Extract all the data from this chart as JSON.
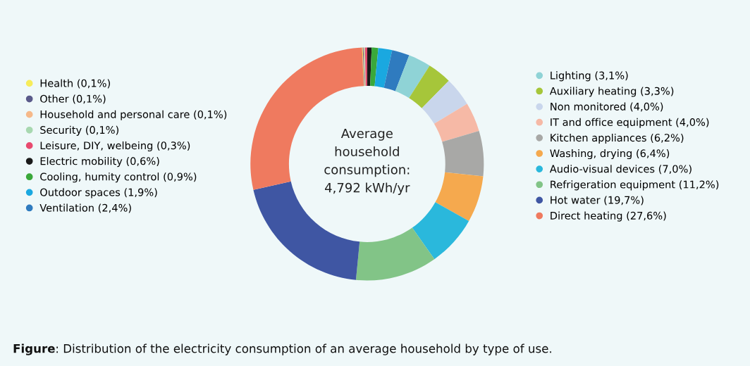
{
  "chart_data": {
    "type": "donut",
    "categories": [
      "Health",
      "Other",
      "Household and personal care",
      "Security",
      "Leisure, DIY, welbeing",
      "Electric mobility",
      "Cooling, humity control",
      "Outdoor spaces",
      "Ventilation",
      "Lighting",
      "Auxiliary heating",
      "Non monitored",
      "IT and office equipment",
      "Kitchen appliances",
      "Washing, drying",
      "Audio-visual devices",
      "Refrigeration equipment",
      "Hot water",
      "Direct heating"
    ],
    "values": [
      0.1,
      0.1,
      0.1,
      0.1,
      0.3,
      0.6,
      0.9,
      1.9,
      2.4,
      3.1,
      3.3,
      4.0,
      4.0,
      6.2,
      6.4,
      7.0,
      11.2,
      19.7,
      27.6
    ],
    "value_labels": [
      "(0,1%)",
      "(0,1%)",
      "(0,1%)",
      "(0,1%)",
      "(0,3%)",
      "(0,6%)",
      "(0,9%)",
      "(1,9%)",
      "(2,4%)",
      "(3,1%)",
      "(3,3%)",
      "(4,0%)",
      "(4,0%)",
      "(6,2%)",
      "(6,4%)",
      "(7,0%)",
      "(11,2%)",
      "(19,7%)",
      "(27,6%)"
    ],
    "colors": [
      "#f7ec5a",
      "#5a5a8a",
      "#f6b98a",
      "#a8d8b0",
      "#e84a6f",
      "#1a1a1a",
      "#3aa83a",
      "#1aa8e0",
      "#2f7bbf",
      "#8fd3d6",
      "#a6c63a",
      "#c9d6ec",
      "#f6b9a6",
      "#a8a8a6",
      "#f5a94e",
      "#2ab8dc",
      "#82c487",
      "#3f56a3",
      "#ef7a5f"
    ],
    "legend": "left",
    "annotations": [
      "Average\nhousehold\nconsumption:\n4,792 kWh/yr",
      "Figure: Distribution of the electricity consumption of an average household by type of use."
    ]
  }
}
